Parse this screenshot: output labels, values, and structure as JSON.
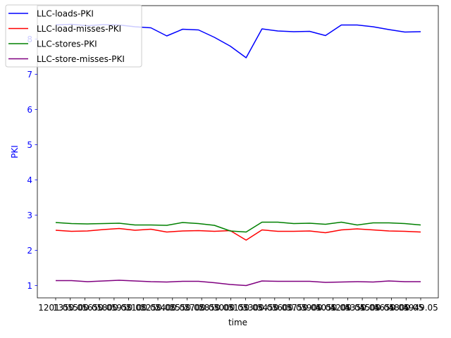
{
  "chart_data": {
    "type": "line",
    "xlabel": "time",
    "ylabel": "PKI",
    "ylabel_color": "#0000ff",
    "ylim": [
      0.65,
      8.95
    ],
    "yticks": [
      1,
      2,
      3,
      4,
      5,
      6,
      7,
      8
    ],
    "x_tick_labels": [
      "1201.05",
      "1350.05",
      "1500.05",
      "1650.05",
      "1800.05",
      "1950.05",
      "2100.05",
      "2250.05",
      "2400.05",
      "2550.05",
      "2700.05",
      "2850.05",
      "3000.05",
      "3150.05",
      "3300.05",
      "3450.05",
      "3600.05",
      "3750.05",
      "3900.05",
      "4050.05",
      "4200.05",
      "4350.05",
      "4500.05",
      "4650.05",
      "4800.05",
      "4949.05"
    ],
    "grid": false,
    "legend_position": "top-left",
    "series": [
      {
        "name": "LLC-loads-PKI",
        "color": "#0000ff",
        "values": [
          8.4,
          8.42,
          8.38,
          8.41,
          8.4,
          8.35,
          8.32,
          8.09,
          8.28,
          8.26,
          8.05,
          7.8,
          7.47,
          8.29,
          8.23,
          8.21,
          8.22,
          8.1,
          8.4,
          8.4,
          8.35,
          8.27,
          8.2,
          8.21
        ]
      },
      {
        "name": "LLC-load-misses-PKI",
        "color": "#ff0000",
        "values": [
          2.57,
          2.54,
          2.55,
          2.59,
          2.62,
          2.57,
          2.6,
          2.52,
          2.55,
          2.56,
          2.54,
          2.56,
          2.29,
          2.58,
          2.54,
          2.54,
          2.55,
          2.5,
          2.58,
          2.61,
          2.58,
          2.55,
          2.54,
          2.52
        ]
      },
      {
        "name": "LLC-stores-PKI",
        "color": "#008000",
        "values": [
          2.79,
          2.76,
          2.75,
          2.76,
          2.77,
          2.72,
          2.72,
          2.71,
          2.79,
          2.76,
          2.71,
          2.55,
          2.52,
          2.8,
          2.8,
          2.76,
          2.77,
          2.74,
          2.8,
          2.72,
          2.78,
          2.78,
          2.76,
          2.72
        ]
      },
      {
        "name": "LLC-store-misses-PKI",
        "color": "#800080",
        "values": [
          1.14,
          1.14,
          1.11,
          1.13,
          1.15,
          1.13,
          1.11,
          1.1,
          1.12,
          1.12,
          1.08,
          1.03,
          1.0,
          1.13,
          1.12,
          1.12,
          1.12,
          1.09,
          1.1,
          1.11,
          1.1,
          1.13,
          1.11,
          1.11
        ]
      }
    ]
  }
}
